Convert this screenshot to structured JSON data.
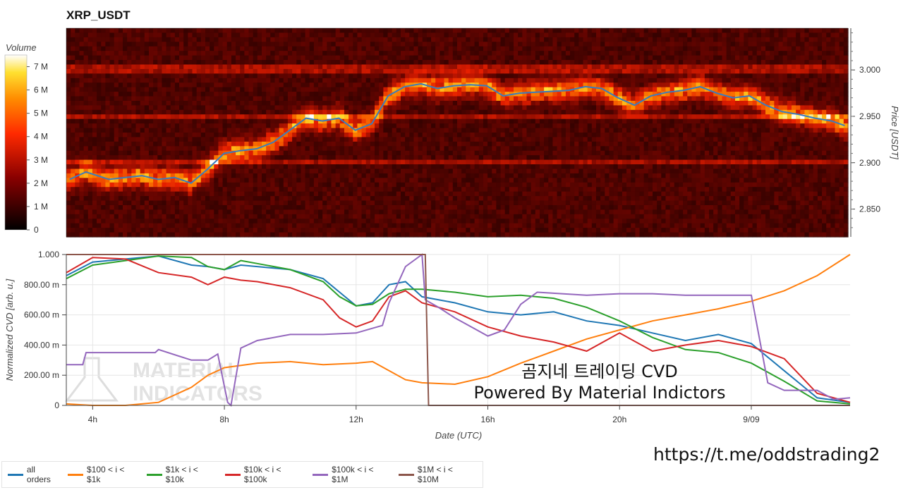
{
  "chart_data": [
    {
      "type": "heatmap",
      "title": "XRP_USDT",
      "ylabel": "Price [USDT]",
      "yticks": [
        2.85,
        2.9,
        2.95,
        3.0
      ],
      "ytick_labels": [
        "2.850",
        "2.900",
        "2.950",
        "3.000"
      ],
      "ylim": [
        2.82,
        3.045
      ],
      "xlim": [
        3.2,
        27.0
      ],
      "colorbar": {
        "title": "Volume",
        "ticks": [
          0,
          1,
          2,
          3,
          4,
          5,
          6,
          7
        ],
        "tick_labels": [
          "0",
          "1 M",
          "2 M",
          "3 M",
          "4 M",
          "5 M",
          "6 M",
          "7 M"
        ],
        "range": [
          0,
          7.5
        ]
      },
      "price_line": {
        "color": "#3a7bbf",
        "x": [
          3.3,
          3.8,
          4.5,
          5.0,
          5.5,
          6.0,
          6.5,
          7.0,
          7.5,
          8.0,
          8.5,
          9.0,
          9.5,
          10.0,
          10.5,
          11.0,
          11.5,
          12.0,
          12.5,
          13.0,
          13.5,
          14.0,
          14.5,
          15.0,
          15.5,
          16.0,
          16.5,
          17.0,
          17.5,
          18.0,
          18.5,
          19.0,
          19.5,
          20.0,
          20.5,
          21.0,
          21.5,
          22.0,
          22.5,
          23.0,
          23.5,
          24.0,
          24.5,
          25.0,
          25.5,
          26.0,
          26.5,
          26.9
        ],
        "y": [
          2.882,
          2.89,
          2.882,
          2.884,
          2.886,
          2.882,
          2.884,
          2.878,
          2.893,
          2.91,
          2.913,
          2.915,
          2.922,
          2.935,
          2.948,
          2.945,
          2.948,
          2.935,
          2.942,
          2.972,
          2.982,
          2.985,
          2.98,
          2.983,
          2.984,
          2.983,
          2.972,
          2.975,
          2.976,
          2.977,
          2.978,
          2.982,
          2.98,
          2.97,
          2.962,
          2.972,
          2.976,
          2.978,
          2.982,
          2.975,
          2.97,
          2.972,
          2.962,
          2.955,
          2.952,
          2.948,
          2.945,
          2.94
        ]
      }
    },
    {
      "type": "line",
      "xlabel": "Date (UTC)",
      "ylabel": "Normalized CVD [arb. u.]",
      "xticks": [
        4,
        8,
        12,
        16,
        20,
        24
      ],
      "xtick_labels": [
        "4h",
        "8h",
        "12h",
        "16h",
        "20h",
        "9/09"
      ],
      "yticks": [
        0,
        0.2,
        0.4,
        0.6,
        0.8,
        1.0
      ],
      "ytick_labels": [
        "0",
        "200.00 m",
        "400.00 m",
        "600.00 m",
        "800.00 m",
        "1.000"
      ],
      "xlim": [
        3.2,
        27.0
      ],
      "ylim": [
        0,
        1.0
      ],
      "series": [
        {
          "name": "all orders",
          "color": "#1f77b4",
          "x": [
            3.2,
            4,
            5,
            6,
            7,
            7.5,
            8,
            8.5,
            9,
            10,
            11,
            11.5,
            12,
            12.5,
            13,
            13.5,
            14,
            15,
            16,
            17,
            18,
            19,
            20,
            21,
            22,
            23,
            24,
            25,
            26,
            27
          ],
          "y": [
            0.86,
            0.95,
            0.97,
            0.99,
            0.93,
            0.92,
            0.9,
            0.93,
            0.92,
            0.9,
            0.84,
            0.75,
            0.66,
            0.68,
            0.8,
            0.82,
            0.72,
            0.68,
            0.62,
            0.6,
            0.62,
            0.56,
            0.53,
            0.48,
            0.43,
            0.47,
            0.41,
            0.23,
            0.05,
            0.02
          ]
        },
        {
          "name": "$100 < i < $1k",
          "color": "#ff7f0e",
          "x": [
            3.2,
            4,
            5,
            6,
            7,
            7.5,
            8,
            9,
            10,
            11,
            12,
            12.5,
            13,
            13.5,
            14,
            15,
            16,
            17,
            18,
            19,
            20,
            21,
            22,
            23,
            24,
            25,
            26,
            27
          ],
          "y": [
            0.01,
            0.0,
            0.0,
            0.02,
            0.12,
            0.2,
            0.25,
            0.28,
            0.29,
            0.27,
            0.28,
            0.29,
            0.23,
            0.17,
            0.15,
            0.14,
            0.19,
            0.28,
            0.36,
            0.44,
            0.5,
            0.56,
            0.6,
            0.64,
            0.69,
            0.76,
            0.86,
            1.0
          ]
        },
        {
          "name": "$1k < i < $10k",
          "color": "#2ca02c",
          "x": [
            3.2,
            4,
            5,
            6,
            7,
            7.5,
            8,
            8.5,
            9,
            10,
            11,
            11.5,
            12,
            12.5,
            13,
            13.5,
            14,
            15,
            16,
            17,
            18,
            19,
            20,
            21,
            22,
            23,
            24,
            25,
            26,
            27
          ],
          "y": [
            0.84,
            0.93,
            0.96,
            0.99,
            0.98,
            0.92,
            0.9,
            0.96,
            0.94,
            0.9,
            0.82,
            0.72,
            0.66,
            0.67,
            0.74,
            0.77,
            0.77,
            0.75,
            0.72,
            0.73,
            0.71,
            0.65,
            0.56,
            0.45,
            0.37,
            0.35,
            0.28,
            0.16,
            0.03,
            0.01
          ]
        },
        {
          "name": "$10k < i < $100k",
          "color": "#d62728",
          "x": [
            3.2,
            4,
            5,
            6,
            7,
            7.5,
            8,
            8.5,
            9,
            10,
            11,
            11.5,
            12,
            12.5,
            13,
            13.5,
            14,
            15,
            16,
            17,
            18,
            19,
            20,
            21,
            22,
            23,
            24,
            25,
            26,
            27
          ],
          "y": [
            0.88,
            0.98,
            0.97,
            0.88,
            0.85,
            0.8,
            0.85,
            0.83,
            0.82,
            0.78,
            0.7,
            0.58,
            0.52,
            0.56,
            0.72,
            0.76,
            0.68,
            0.62,
            0.52,
            0.46,
            0.42,
            0.36,
            0.48,
            0.36,
            0.4,
            0.43,
            0.39,
            0.31,
            0.08,
            0.02
          ]
        },
        {
          "name": "$100k < i < $1M",
          "color": "#9467bd",
          "x": [
            3.2,
            3.7,
            3.8,
            5,
            5.9,
            6,
            7,
            7.5,
            7.8,
            8.1,
            8.2,
            8.5,
            9,
            10,
            11,
            12,
            12.8,
            13,
            13.5,
            14,
            14.1,
            14.5,
            15,
            15.5,
            16,
            16.5,
            17,
            17.5,
            19,
            20,
            21,
            22,
            23,
            23.5,
            24,
            24.5,
            25,
            26,
            26.5,
            27
          ],
          "y": [
            0.27,
            0.27,
            0.35,
            0.35,
            0.35,
            0.37,
            0.3,
            0.3,
            0.34,
            0.02,
            0.0,
            0.38,
            0.43,
            0.47,
            0.47,
            0.48,
            0.53,
            0.68,
            0.92,
            1.0,
            0.7,
            0.65,
            0.58,
            0.52,
            0.46,
            0.5,
            0.67,
            0.75,
            0.73,
            0.74,
            0.74,
            0.73,
            0.73,
            0.73,
            0.73,
            0.15,
            0.1,
            0.1,
            0.04,
            0.05
          ]
        },
        {
          "name": "$1M < i < $10M",
          "color": "#8c564b",
          "x": [
            3.2,
            14.1,
            14.2,
            27
          ],
          "y": [
            1.0,
            1.0,
            0.0,
            0.0
          ]
        }
      ]
    }
  ],
  "watermark": {
    "line1": "MATERIAL",
    "line2": "INDICATORS"
  },
  "overlay": {
    "line1": "곰지네 트레이딩 CVD",
    "line2": "Powered By Material Indictors"
  },
  "url": "https://t.me/oddstrading2"
}
